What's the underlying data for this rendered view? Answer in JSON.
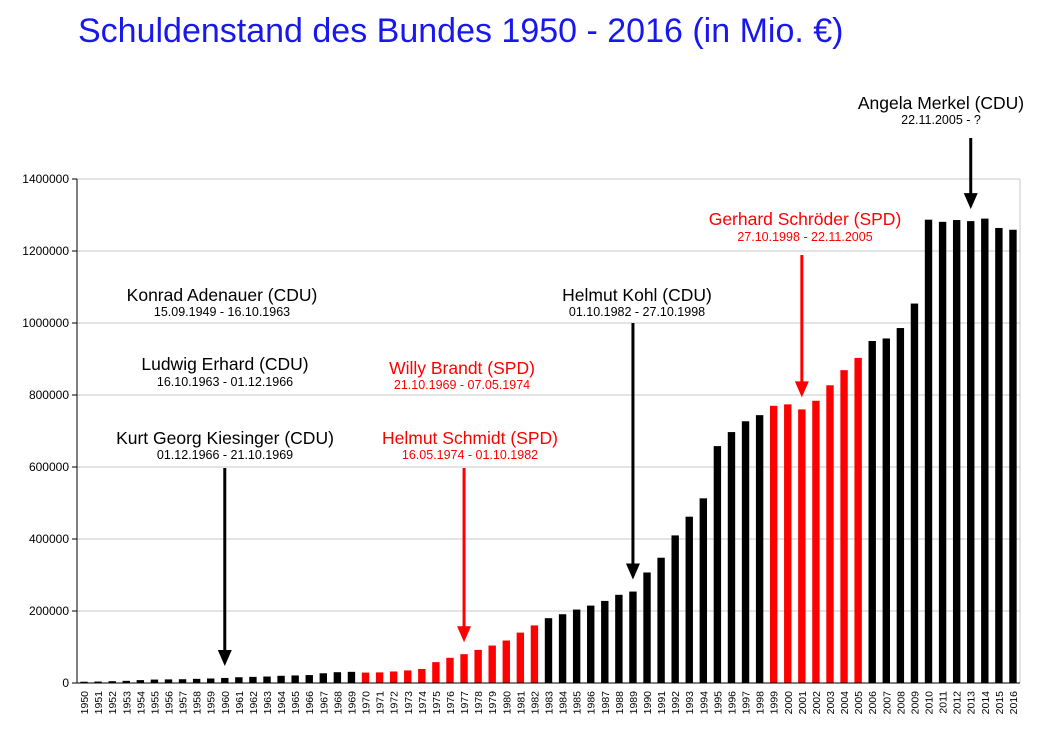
{
  "chart_data": {
    "type": "bar",
    "title": "Schuldenstand des Bundes 1950 - 2016 (in Mio. €)",
    "xlabel": "",
    "ylabel": "",
    "ylim": [
      0,
      1400000
    ],
    "y_ticks": [
      0,
      200000,
      400000,
      600000,
      800000,
      1000000,
      1200000,
      1400000
    ],
    "grid": true,
    "legend": "none",
    "categories": [
      "1950",
      "1951",
      "1952",
      "1953",
      "1954",
      "1955",
      "1956",
      "1957",
      "1958",
      "1959",
      "1960",
      "1961",
      "1962",
      "1963",
      "1964",
      "1965",
      "1966",
      "1967",
      "1968",
      "1969",
      "1970",
      "1971",
      "1972",
      "1973",
      "1974",
      "1975",
      "1976",
      "1977",
      "1978",
      "1979",
      "1980",
      "1981",
      "1982",
      "1983",
      "1984",
      "1985",
      "1986",
      "1987",
      "1988",
      "1989",
      "1990",
      "1991",
      "1992",
      "1993",
      "1994",
      "1995",
      "1996",
      "1997",
      "1998",
      "1999",
      "2000",
      "2001",
      "2002",
      "2003",
      "2004",
      "2005",
      "2006",
      "2007",
      "2008",
      "2009",
      "2010",
      "2011",
      "2012",
      "2013",
      "2014",
      "2015",
      "2016"
    ],
    "values": [
      3500,
      4000,
      5000,
      6000,
      8000,
      9500,
      10000,
      10500,
      11500,
      12500,
      14000,
      16000,
      17000,
      18000,
      20000,
      21000,
      22000,
      27000,
      30000,
      31000,
      29000,
      29500,
      32000,
      35000,
      39000,
      58000,
      70000,
      80000,
      92000,
      104000,
      118000,
      140000,
      160000,
      180000,
      191000,
      204000,
      215000,
      228000,
      245000,
      254000,
      307000,
      348000,
      410000,
      462000,
      513000,
      658000,
      697000,
      727000,
      744000,
      770000,
      774000,
      760000,
      784000,
      827000,
      869000,
      903000,
      950000,
      957000,
      986000,
      1054000,
      1287000,
      1281000,
      1286000,
      1283000,
      1290000,
      1264000,
      1259000
    ],
    "colors": {
      "cdu": "#000000",
      "spd": "#ff0000",
      "title": "#1818ee",
      "grid": "#c8c8c8",
      "axis": "#000000"
    },
    "party_by_bar": [
      "cdu",
      "cdu",
      "cdu",
      "cdu",
      "cdu",
      "cdu",
      "cdu",
      "cdu",
      "cdu",
      "cdu",
      "cdu",
      "cdu",
      "cdu",
      "cdu",
      "cdu",
      "cdu",
      "cdu",
      "cdu",
      "cdu",
      "cdu",
      "spd",
      "spd",
      "spd",
      "spd",
      "spd",
      "spd",
      "spd",
      "spd",
      "spd",
      "spd",
      "spd",
      "spd",
      "spd",
      "cdu",
      "cdu",
      "cdu",
      "cdu",
      "cdu",
      "cdu",
      "cdu",
      "cdu",
      "cdu",
      "cdu",
      "cdu",
      "cdu",
      "cdu",
      "cdu",
      "cdu",
      "cdu",
      "spd",
      "spd",
      "spd",
      "spd",
      "spd",
      "spd",
      "spd",
      "cdu",
      "cdu",
      "cdu",
      "cdu",
      "cdu",
      "cdu",
      "cdu",
      "cdu",
      "cdu",
      "cdu",
      "cdu"
    ],
    "annotations": [
      {
        "name": "Konrad Adenauer (CDU)",
        "dates": "15.09.1949 - 16.10.1963",
        "party": "cdu"
      },
      {
        "name": "Ludwig Erhard (CDU)",
        "dates": "16.10.1963 - 01.12.1966",
        "party": "cdu"
      },
      {
        "name": "Kurt Georg Kiesinger (CDU)",
        "dates": "01.12.1966 - 21.10.1969",
        "party": "cdu",
        "arrow_to": "1960"
      },
      {
        "name": "Willy Brandt (SPD)",
        "dates": "21.10.1969 - 07.05.1974",
        "party": "spd"
      },
      {
        "name": "Helmut Schmidt (SPD)",
        "dates": "16.05.1974 - 01.10.1982",
        "party": "spd",
        "arrow_to": "1977"
      },
      {
        "name": "Helmut Kohl (CDU)",
        "dates": "01.10.1982 - 27.10.1998",
        "party": "cdu",
        "arrow_to": "1989"
      },
      {
        "name": "Gerhard Schröder (SPD)",
        "dates": "27.10.1998 - 22.11.2005",
        "party": "spd",
        "arrow_to": "2001"
      },
      {
        "name": "Angela Merkel (CDU)",
        "dates": "22.11.2005 - ?",
        "party": "cdu",
        "arrow_to": "2013"
      }
    ]
  }
}
